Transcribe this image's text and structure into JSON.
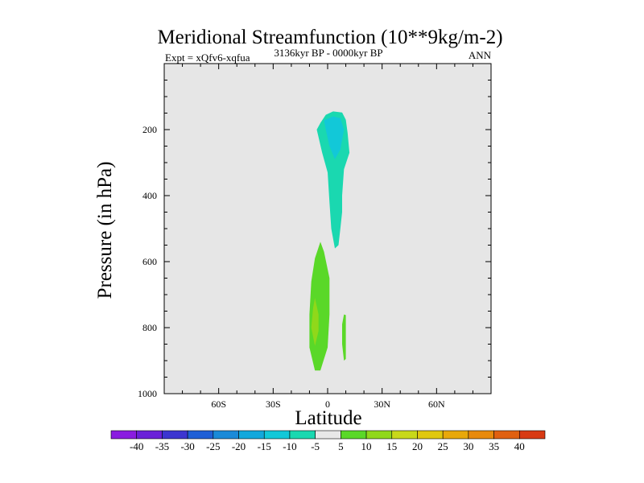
{
  "chart_data": {
    "type": "heatmap",
    "title": "Meridional Streamfunction (10**9kg/m-2)",
    "subtitle_left": "Expt = xQfv6-xqfua",
    "subtitle_center": "3136kyr BP - 0000kyr BP",
    "subtitle_right": "ANN",
    "xlabel": "Latitude",
    "ylabel": "Pressure (in hPa)",
    "xlim": [
      -90,
      90
    ],
    "ylim": [
      1000,
      0
    ],
    "x_ticks": [
      {
        "value": -60,
        "label": "60S"
      },
      {
        "value": -30,
        "label": "30S"
      },
      {
        "value": 0,
        "label": "0"
      },
      {
        "value": 30,
        "label": "30N"
      },
      {
        "value": 60,
        "label": "60N"
      }
    ],
    "y_ticks": [
      {
        "value": 200,
        "label": "200"
      },
      {
        "value": 400,
        "label": "400"
      },
      {
        "value": 600,
        "label": "600"
      },
      {
        "value": 800,
        "label": "800"
      },
      {
        "value": 1000,
        "label": "1000"
      }
    ],
    "background_color": "#e6e6e6",
    "colorbar": {
      "labels": [
        "-40",
        "-35",
        "-30",
        "-25",
        "-20",
        "-15",
        "-10",
        "-5",
        "5",
        "10",
        "15",
        "20",
        "25",
        "30",
        "35",
        "40"
      ],
      "colors": [
        "#8a1ce0",
        "#6a20d8",
        "#3c35d0",
        "#1f5fd6",
        "#1a8ad8",
        "#12a8dc",
        "#12c8d8",
        "#1ad8b0",
        "#e8e8e8",
        "#5ad828",
        "#90d81a",
        "#c8d81a",
        "#e0c80e",
        "#e8a80a",
        "#e88a0c",
        "#e06010",
        "#d83a14"
      ]
    },
    "contours": [
      {
        "name": "upper-negative-cell",
        "color": "#1ad8b0",
        "points": [
          [
            -4,
            180
          ],
          [
            -1,
            155
          ],
          [
            3,
            145
          ],
          [
            8,
            148
          ],
          [
            10,
            170
          ],
          [
            11,
            210
          ],
          [
            12,
            270
          ],
          [
            9,
            320
          ],
          [
            8,
            400
          ],
          [
            8,
            450
          ],
          [
            7,
            500
          ],
          [
            6,
            550
          ],
          [
            4,
            560
          ],
          [
            2,
            500
          ],
          [
            1,
            420
          ],
          [
            0,
            330
          ],
          [
            -3,
            270
          ],
          [
            -6,
            200
          ]
        ]
      },
      {
        "name": "upper-negative-core",
        "color": "#12c8d8",
        "points": [
          [
            -2,
            172
          ],
          [
            3,
            160
          ],
          [
            7,
            165
          ],
          [
            9,
            200
          ],
          [
            7,
            260
          ],
          [
            4,
            290
          ],
          [
            1,
            250
          ],
          [
            -1,
            200
          ]
        ]
      },
      {
        "name": "lower-positive-cell",
        "color": "#5ad828",
        "points": [
          [
            -4,
            540
          ],
          [
            -2,
            570
          ],
          [
            1,
            650
          ],
          [
            1,
            760
          ],
          [
            0,
            860
          ],
          [
            -4,
            930
          ],
          [
            -7,
            930
          ],
          [
            -10,
            860
          ],
          [
            -10,
            760
          ],
          [
            -9,
            660
          ],
          [
            -7,
            590
          ]
        ]
      },
      {
        "name": "lower-positive-core",
        "color": "#90d81a",
        "points": [
          [
            -7,
            710
          ],
          [
            -5,
            760
          ],
          [
            -5,
            810
          ],
          [
            -7,
            855
          ],
          [
            -9,
            800
          ],
          [
            -8,
            740
          ]
        ]
      },
      {
        "name": "small-positive-cell",
        "color": "#5ad828",
        "points": [
          [
            9,
            760
          ],
          [
            10,
            762
          ],
          [
            10,
            895
          ],
          [
            9,
            900
          ],
          [
            8,
            850
          ],
          [
            8,
            790
          ]
        ]
      }
    ]
  }
}
